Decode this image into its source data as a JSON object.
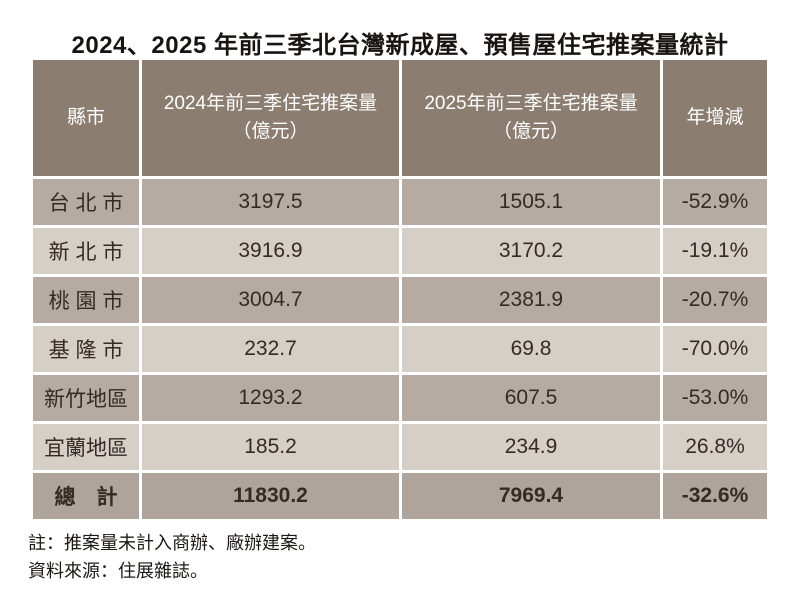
{
  "title": "2024、2025 年前三季北台灣新成屋、預售屋住宅推案量統計",
  "table": {
    "header": {
      "col_city": "縣市",
      "col_2024_line1": "2024年前三季住宅推案量",
      "col_2024_line2": "（億元）",
      "col_2025_line1": "2025年前三季住宅推案量",
      "col_2025_line2": "（億元）",
      "col_yoy": "年增減"
    },
    "rows": [
      {
        "city": "台 北 市",
        "v2024": "3197.5",
        "v2025": "1505.1",
        "yoy": "-52.9%"
      },
      {
        "city": "新 北 市",
        "v2024": "3916.9",
        "v2025": "3170.2",
        "yoy": "-19.1%"
      },
      {
        "city": "桃 園 市",
        "v2024": "3004.7",
        "v2025": "2381.9",
        "yoy": "-20.7%"
      },
      {
        "city": "基 隆 市",
        "v2024": "232.7",
        "v2025": "69.8",
        "yoy": "-70.0%"
      },
      {
        "city": "新竹地區",
        "v2024": "1293.2",
        "v2025": "607.5",
        "yoy": "-53.0%"
      },
      {
        "city": "宜蘭地區",
        "v2024": "185.2",
        "v2025": "234.9",
        "yoy": "26.8%"
      }
    ],
    "total": {
      "city": "總　計",
      "v2024": "11830.2",
      "v2025": "7969.4",
      "yoy": "-32.6%"
    }
  },
  "notes": {
    "line1": "註：推案量未計入商辦、廠辦建案。",
    "line2": "資料來源：住展雜誌。"
  },
  "colors": {
    "header_bg": "#8b7d6f",
    "header_text": "#ffffff",
    "row_dark": "#b5aba2",
    "row_light": "#d5cfc8",
    "total_bg": "#afa49b",
    "text_dark": "#332b24"
  },
  "chart_data": {
    "type": "table",
    "title": "2024、2025 年前三季北台灣新成屋、預售屋住宅推案量統計",
    "columns": [
      "縣市",
      "2024年前三季住宅推案量（億元）",
      "2025年前三季住宅推案量（億元）",
      "年增減"
    ],
    "rows": [
      [
        "台北市",
        3197.5,
        1505.1,
        "-52.9%"
      ],
      [
        "新北市",
        3916.9,
        3170.2,
        "-19.1%"
      ],
      [
        "桃園市",
        3004.7,
        2381.9,
        "-20.7%"
      ],
      [
        "基隆市",
        232.7,
        69.8,
        "-70.0%"
      ],
      [
        "新竹地區",
        1293.2,
        607.5,
        "-53.0%"
      ],
      [
        "宜蘭地區",
        185.2,
        234.9,
        "26.8%"
      ],
      [
        "總計",
        11830.2,
        7969.4,
        "-32.6%"
      ]
    ],
    "notes": [
      "註：推案量未計入商辦、廠辦建案。",
      "資料來源：住展雜誌。"
    ]
  }
}
